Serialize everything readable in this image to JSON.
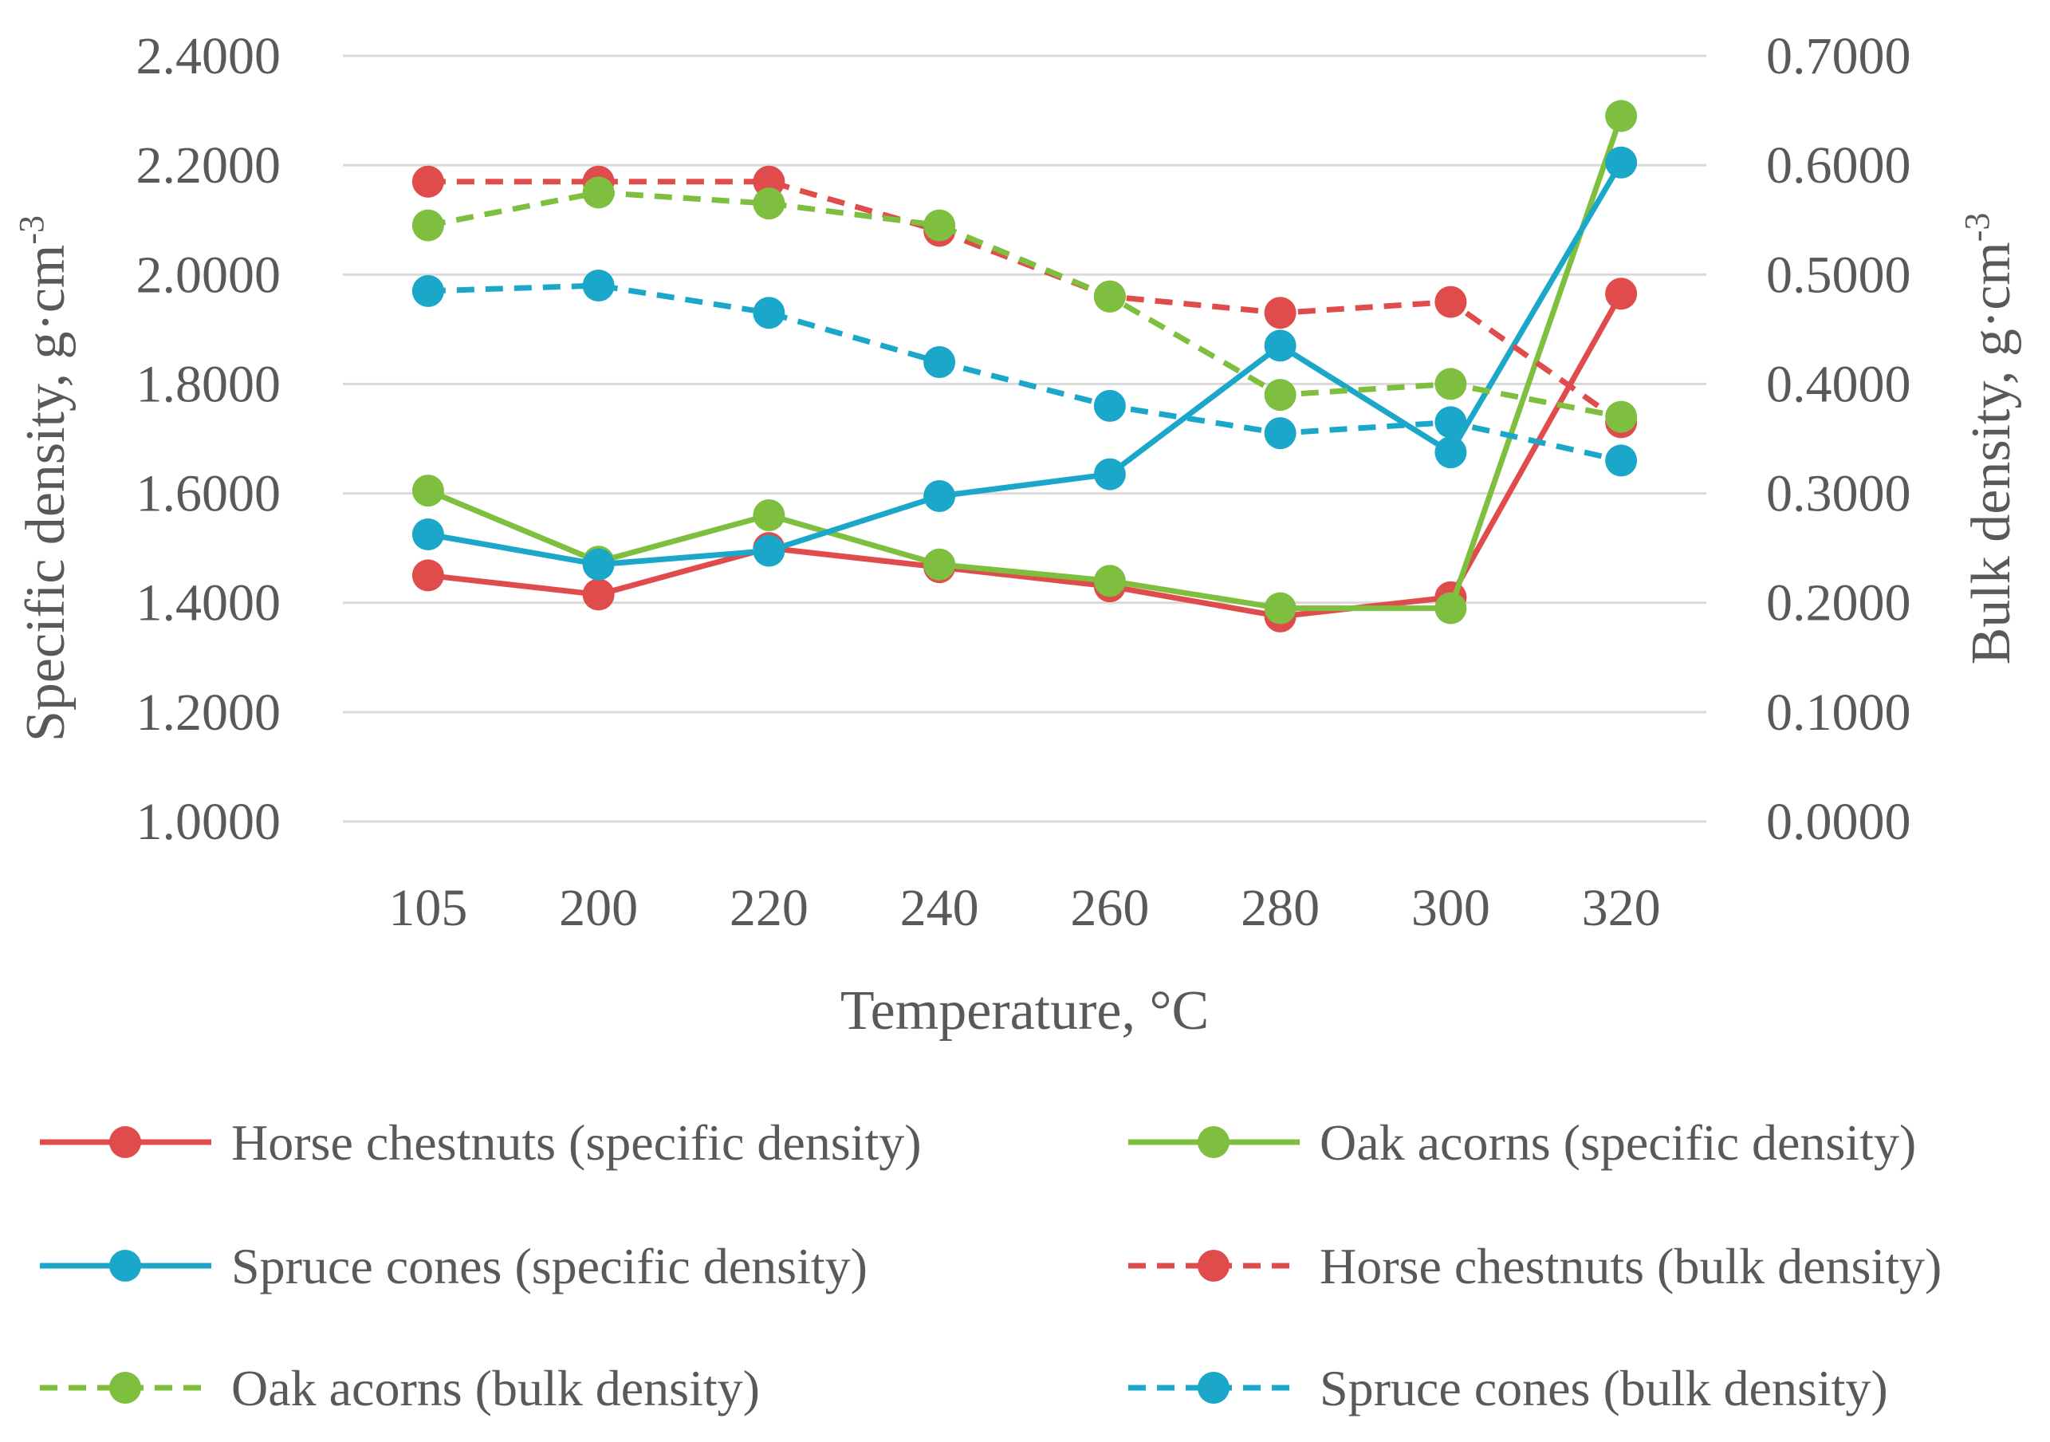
{
  "chart_data": {
    "type": "line",
    "title": "",
    "xlabel": "Temperature, °C",
    "ylabel_left": "Specific density, g·cm",
    "ylabel_left_sup": "-3",
    "ylabel_right": "Bulk density, g·cm",
    "ylabel_right_sup": "-3",
    "categories": [
      "105",
      "200",
      "220",
      "240",
      "260",
      "280",
      "300",
      "320"
    ],
    "ylim_left": [
      1.0,
      2.4
    ],
    "ylim_right": [
      0.0,
      0.7
    ],
    "yticks_left": [
      "1.0000",
      "1.2000",
      "1.4000",
      "1.6000",
      "1.8000",
      "2.0000",
      "2.2000",
      "2.4000"
    ],
    "yticks_right": [
      "0.0000",
      "0.1000",
      "0.2000",
      "0.3000",
      "0.4000",
      "0.5000",
      "0.6000",
      "0.7000"
    ],
    "grid": true,
    "legend_position": "bottom",
    "series": [
      {
        "name": "Horse chestnuts (specific density)",
        "axis": "left",
        "style": "solid",
        "color": "#e04b4b",
        "values": [
          1.45,
          1.415,
          1.5,
          1.465,
          1.43,
          1.375,
          1.41,
          1.965
        ]
      },
      {
        "name": "Oak acorns (specific density)",
        "axis": "left",
        "style": "solid",
        "color": "#7fbf3f",
        "values": [
          1.605,
          1.475,
          1.56,
          1.47,
          1.44,
          1.39,
          1.39,
          2.29
        ]
      },
      {
        "name": "Spruce cones (specific density)",
        "axis": "left",
        "style": "solid",
        "color": "#1ba7c9",
        "values": [
          1.525,
          1.47,
          1.495,
          1.595,
          1.635,
          1.87,
          1.675,
          2.205
        ]
      },
      {
        "name": "Horse chestnuts (bulk density)",
        "axis": "right",
        "style": "dashed",
        "color": "#e04b4b",
        "values": [
          0.585,
          0.585,
          0.585,
          0.54,
          0.48,
          0.465,
          0.475,
          0.365
        ]
      },
      {
        "name": "Oak acorns (bulk density)",
        "axis": "right",
        "style": "dashed",
        "color": "#7fbf3f",
        "values": [
          0.545,
          0.575,
          0.565,
          0.545,
          0.48,
          0.39,
          0.4,
          0.37
        ]
      },
      {
        "name": "Spruce cones (bulk density)",
        "axis": "right",
        "style": "dashed",
        "color": "#1ba7c9",
        "values": [
          0.485,
          0.49,
          0.465,
          0.42,
          0.38,
          0.355,
          0.365,
          0.33
        ]
      }
    ]
  }
}
